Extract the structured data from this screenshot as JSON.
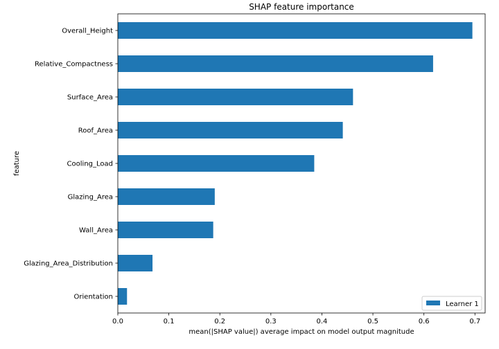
{
  "chart_data": {
    "type": "bar",
    "orientation": "horizontal",
    "title": "SHAP feature importance",
    "xlabel": "mean(|SHAP value|) average impact on model output magnitude",
    "ylabel": "feature",
    "categories": [
      "Overall_Height",
      "Relative_Compactness",
      "Surface_Area",
      "Roof_Area",
      "Cooling_Load",
      "Glazing_Area",
      "Wall_Area",
      "Glazing_Area_Distribution",
      "Orientation"
    ],
    "series": [
      {
        "name": "Learner 1",
        "color": "#1f77b4",
        "values": [
          0.695,
          0.618,
          0.461,
          0.441,
          0.385,
          0.19,
          0.187,
          0.068,
          0.018
        ]
      }
    ],
    "xlim": [
      0,
      0.72
    ],
    "xticks": [
      0,
      0.1,
      0.2,
      0.3,
      0.4,
      0.5,
      0.6,
      0.7
    ],
    "xtick_labels": [
      "0.0",
      "0.1",
      "0.2",
      "0.3",
      "0.4",
      "0.5",
      "0.6",
      "0.7"
    ],
    "grid": false,
    "legend_position": "bottom-right"
  }
}
